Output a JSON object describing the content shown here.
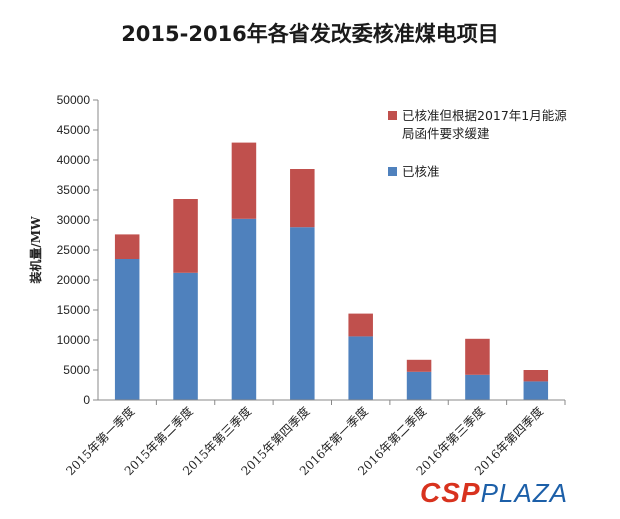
{
  "chart_data": {
    "type": "bar",
    "stacked": true,
    "title": "2015-2016年各省发改委核准煤电项目",
    "ylabel": "装机量/MW",
    "xlabel": "",
    "ylim": [
      0,
      50000
    ],
    "yticks": [
      "0",
      "5000",
      "10000",
      "15000",
      "20000",
      "25000",
      "30000",
      "35000",
      "40000",
      "45000",
      "50000"
    ],
    "categories": [
      "2015年第一季度",
      "2015年第二季度",
      "2015年第三季度",
      "2015年第四季度",
      "2016年第一季度",
      "2016年第二季度",
      "2016年第三季度",
      "2016年第四季度"
    ],
    "series": [
      {
        "name": "已核准",
        "color": "#4f81bd",
        "values": [
          23500,
          21200,
          30200,
          28800,
          10600,
          4700,
          4200,
          3100
        ]
      },
      {
        "name": "已核准但根据2017年1月能源局函件要求缓建",
        "color": "#c0504d",
        "values": [
          4100,
          12300,
          12700,
          9700,
          3800,
          2000,
          6000,
          1900
        ]
      }
    ],
    "legend": {
      "position": "right",
      "lines": [
        [
          "已核准但根据2017年1月能源",
          "局函件要求缓建"
        ],
        [
          "已核准"
        ]
      ]
    },
    "grid": false
  },
  "watermark": {
    "brand_main": "CSP",
    "brand_sub": "PLAZA"
  }
}
